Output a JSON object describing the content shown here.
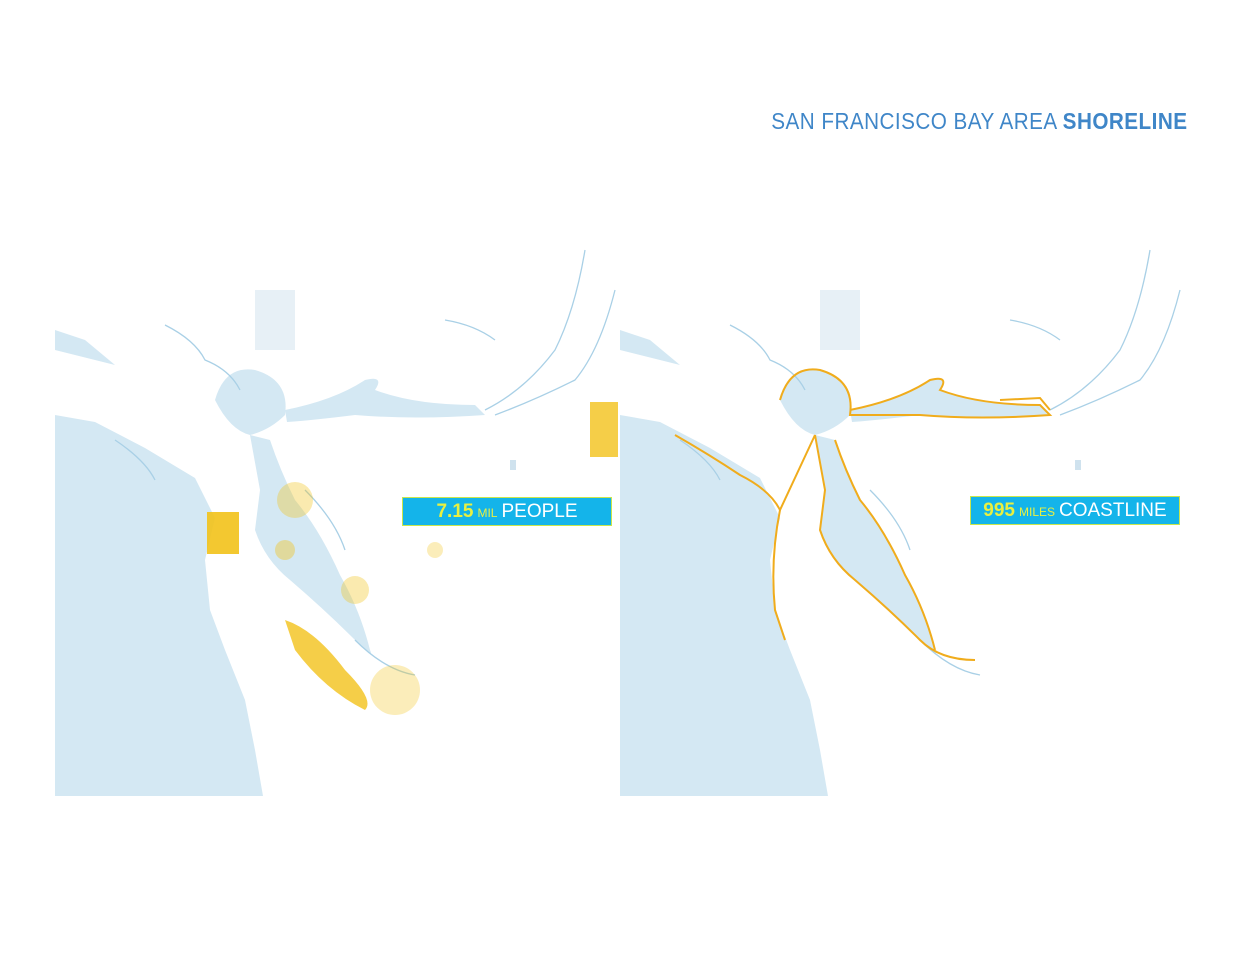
{
  "title": {
    "prefix": "SAN FRANCISCO BAY AREA",
    "emphasis": "SHORELINE"
  },
  "colors": {
    "water": "#d4e8f3",
    "stream": "#a9d0e6",
    "population": "#f2c21a",
    "shoreline": "#f0ac1c",
    "badge": "#14b4ea",
    "badge_number": "#e9f040",
    "title": "#3f86c8"
  },
  "maps": [
    {
      "name": "population",
      "badge": {
        "number": "7.15",
        "unit": "MIL",
        "label": "PEOPLE"
      }
    },
    {
      "name": "shoreline",
      "badge": {
        "number": "995",
        "unit": "MILES",
        "label": "COASTLINE"
      }
    }
  ]
}
